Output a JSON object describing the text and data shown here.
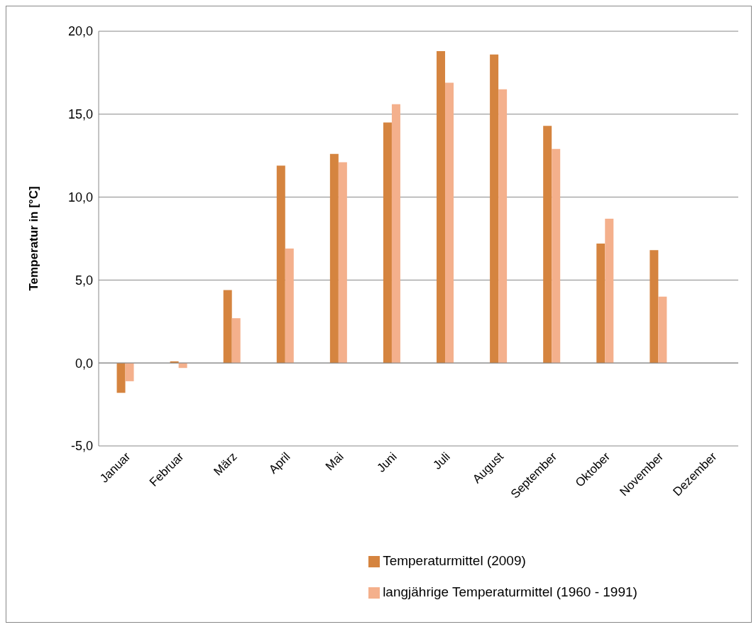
{
  "chart_data": {
    "type": "bar",
    "ylabel": "Temperatur in [°C]",
    "categories": [
      "Januar",
      "Februar",
      "März",
      "April",
      "Mai",
      "Juni",
      "Juli",
      "August",
      "September",
      "Oktober",
      "November",
      "Dezember"
    ],
    "series": [
      {
        "name": "Temperaturmittel (2009)",
        "color": "#d5843f",
        "values": [
          -1.8,
          0.1,
          4.4,
          11.9,
          12.6,
          14.5,
          18.8,
          18.6,
          14.3,
          7.2,
          6.8,
          null
        ]
      },
      {
        "name": "langjährige Temperaturmittel (1960 - 1991)",
        "color": "#f4b08c",
        "values": [
          -1.1,
          -0.3,
          2.7,
          6.9,
          12.1,
          15.6,
          16.9,
          16.5,
          12.9,
          8.7,
          4.0,
          null
        ]
      }
    ],
    "ylim": [
      -5,
      20
    ],
    "yticks": [
      {
        "value": -5,
        "label": "-5,0"
      },
      {
        "value": 0,
        "label": "0,0"
      },
      {
        "value": 5,
        "label": "5,0"
      },
      {
        "value": 10,
        "label": "10,0"
      },
      {
        "value": 15,
        "label": "15,0"
      },
      {
        "value": 20,
        "label": "20,0"
      }
    ],
    "grid": "y",
    "legend": "bottom"
  }
}
